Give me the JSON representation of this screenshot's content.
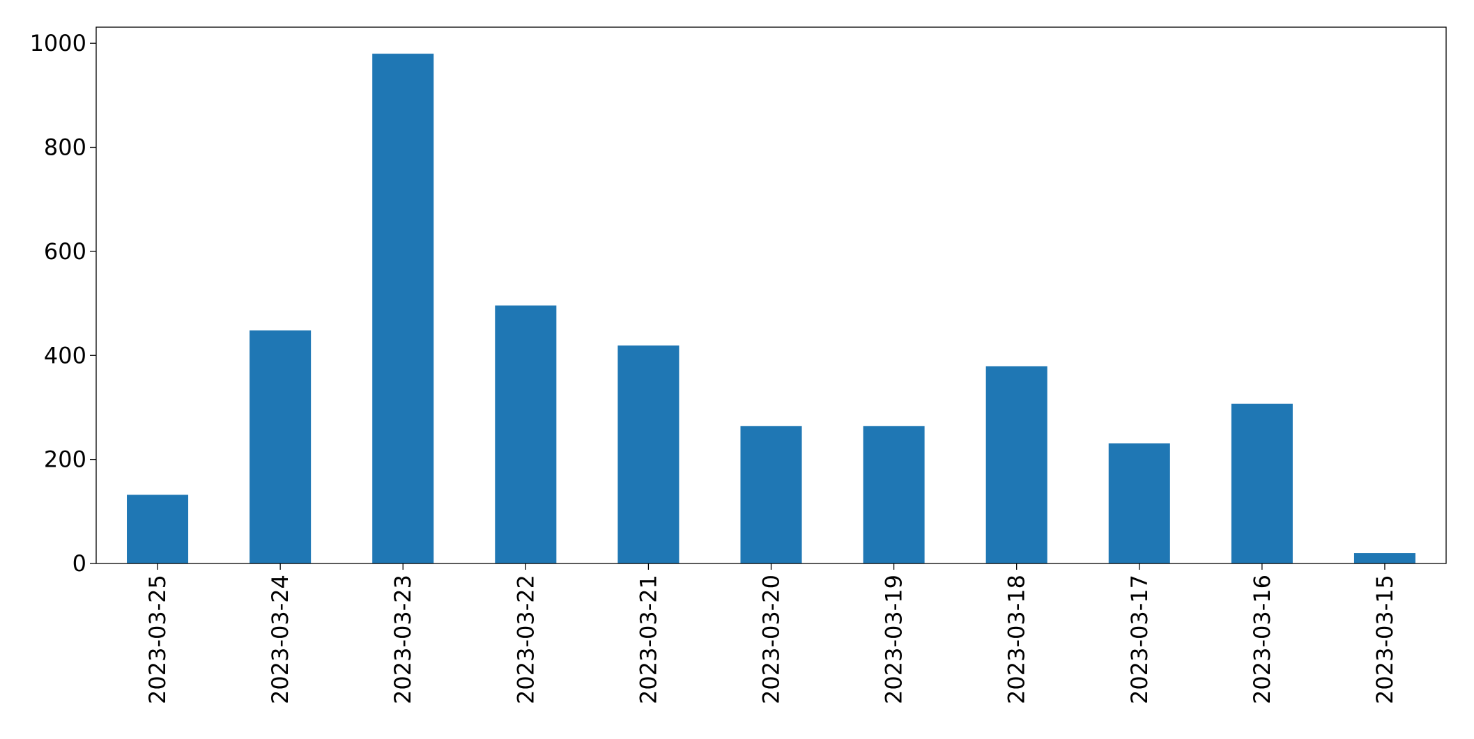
{
  "chart_data": {
    "type": "bar",
    "categories": [
      "2023-03-25",
      "2023-03-24",
      "2023-03-23",
      "2023-03-22",
      "2023-03-21",
      "2023-03-20",
      "2023-03-19",
      "2023-03-18",
      "2023-03-17",
      "2023-03-16",
      "2023-03-15"
    ],
    "values": [
      132,
      448,
      980,
      496,
      419,
      264,
      264,
      379,
      231,
      307,
      20
    ],
    "color": "#1f77b4",
    "ylim": [
      0,
      1031
    ],
    "yticks": [
      0,
      200,
      400,
      600,
      800,
      1000
    ],
    "grid": false
  }
}
